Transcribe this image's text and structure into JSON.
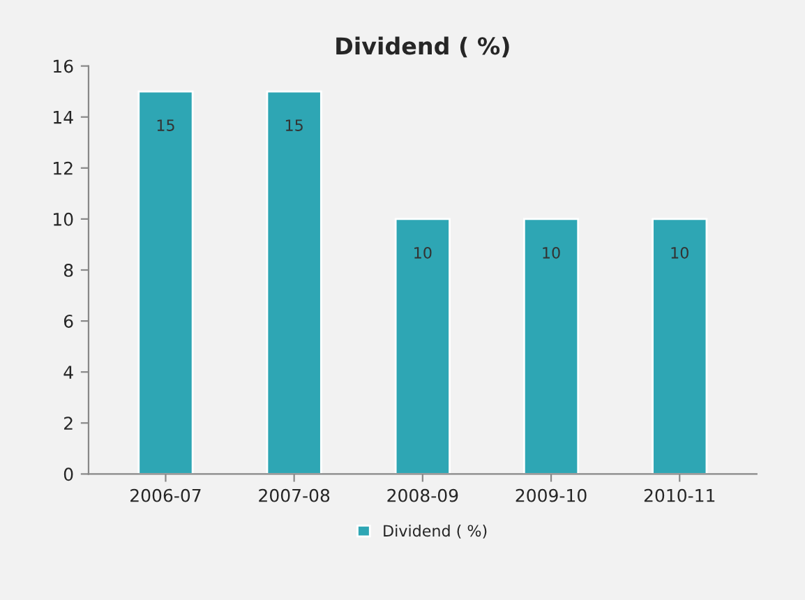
{
  "chart_data": {
    "type": "bar",
    "title": "Dividend ( %)",
    "categories": [
      "2006-07",
      "2007-08",
      "2008-09",
      "2009-10",
      "2010-11"
    ],
    "series": [
      {
        "name": "Dividend ( %)",
        "color": "#2ea6b4",
        "values": [
          15,
          15,
          10,
          10,
          10
        ]
      }
    ],
    "ylim": [
      0,
      16
    ],
    "yticks": [
      0,
      2,
      4,
      6,
      8,
      10,
      12,
      14,
      16
    ],
    "data_labels": true,
    "legend": "bottom",
    "grid": false
  }
}
